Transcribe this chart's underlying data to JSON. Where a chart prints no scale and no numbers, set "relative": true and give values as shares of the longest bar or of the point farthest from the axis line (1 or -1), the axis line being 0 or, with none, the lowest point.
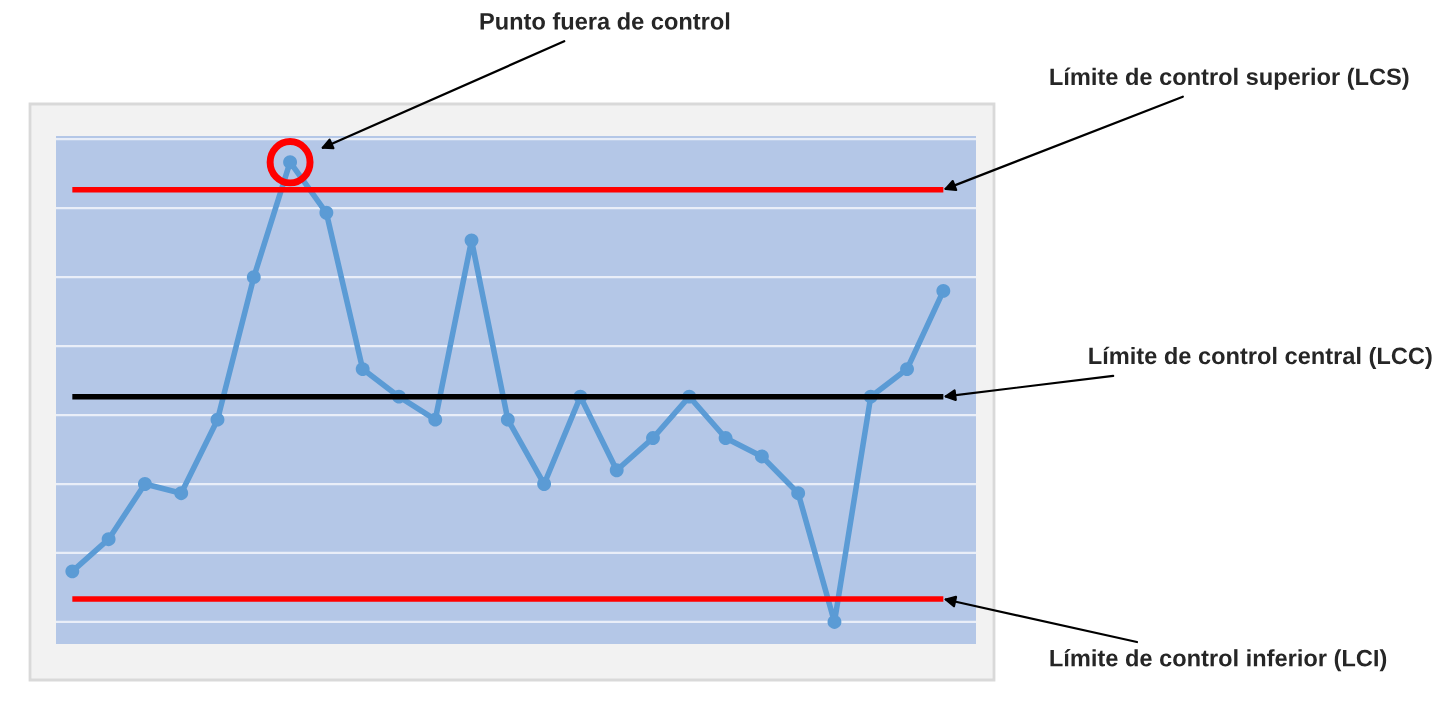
{
  "chart_data": {
    "type": "line",
    "relative": true,
    "categories": [
      null,
      null,
      null,
      null,
      null,
      null,
      null,
      null,
      null,
      null,
      null,
      null,
      null,
      null,
      null,
      null,
      null,
      null,
      null,
      null,
      null,
      null,
      null,
      null,
      null
    ],
    "series": [
      {
        "color": "#5b9bd5",
        "values": [
          0.11,
          0.18,
          0.3,
          0.28,
          0.44,
          0.75,
          1,
          0.89,
          0.55,
          0.49,
          0.44,
          0.83,
          0.44,
          0.3,
          0.49,
          0.33,
          0.4,
          0.49,
          0.4,
          0.36,
          0.28,
          0,
          0.49,
          0.55,
          0.72
        ]
      }
    ],
    "marker": "circle",
    "line_style": "solid",
    "grid": "y",
    "legend": false,
    "ref_lines": [
      {
        "axis": "y",
        "value": 0.94,
        "label": "Límite de control superior (LCS)",
        "color": "#ff0000"
      },
      {
        "axis": "y",
        "value": 0.49,
        "label": "Límite de control central (LCC)",
        "color": "#000000"
      },
      {
        "axis": "y",
        "value": 0.05,
        "label": "Límite de control inferior (LCI)",
        "color": "#ff0000"
      }
    ],
    "annotations": [
      "Punto fuera de control"
    ]
  }
}
